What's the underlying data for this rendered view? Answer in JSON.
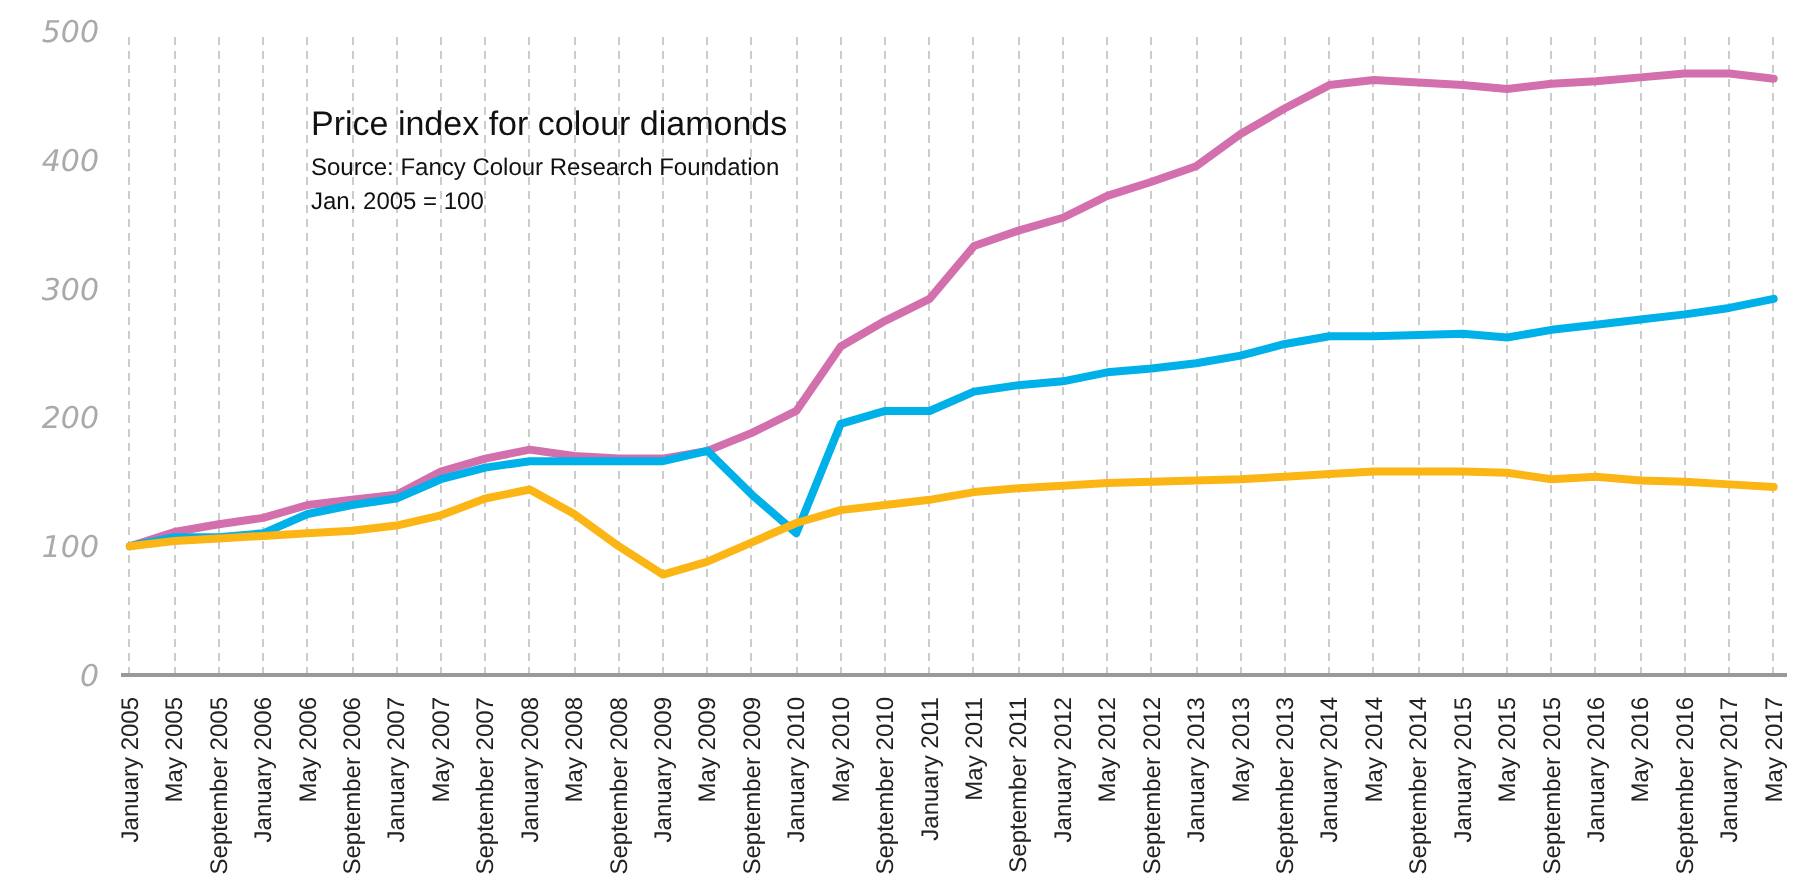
{
  "chart_data": {
    "type": "line",
    "title": "Price index for colour diamonds",
    "subtitle": "Source: Fancy Colour Research Foundation",
    "annotations": [
      "Jan. 2005 = 100"
    ],
    "categories": [
      "January 2005",
      "May 2005",
      "September 2005",
      "January 2006",
      "May 2006",
      "September 2006",
      "January 2007",
      "May 2007",
      "September 2007",
      "January 2008",
      "May 2008",
      "September 2008",
      "January 2009",
      "May 2009",
      "September 2009",
      "January 2010",
      "May 2010",
      "September 2010",
      "January 2011",
      "May 2011",
      "September 2011",
      "January 2012",
      "May 2012",
      "September 2012",
      "January 2013",
      "May 2013",
      "September 2013",
      "January 2014",
      "May 2014",
      "September 2014",
      "January 2015",
      "May 2015",
      "September 2015",
      "January 2016",
      "May 2016",
      "September 2016",
      "January 2017",
      "May 2017"
    ],
    "series": [
      {
        "color": "#d36fad",
        "values": [
          100,
          111,
          117,
          122,
          132,
          136,
          140,
          158,
          168,
          175,
          170,
          168,
          168,
          174,
          188,
          205,
          255,
          275,
          292,
          333,
          345,
          355,
          372,
          383,
          395,
          420,
          440,
          458,
          462,
          460,
          458,
          455,
          459,
          461,
          464,
          467,
          467,
          463
        ]
      },
      {
        "color": "#00b0e8",
        "values": [
          100,
          107,
          107,
          110,
          125,
          132,
          137,
          152,
          161,
          166,
          166,
          166,
          166,
          174,
          140,
          110,
          195,
          205,
          205,
          220,
          225,
          228,
          235,
          238,
          242,
          248,
          257,
          263,
          263,
          264,
          265,
          262,
          268,
          272,
          276,
          280,
          285,
          292
        ]
      },
      {
        "color": "#fbb514",
        "values": [
          100,
          104,
          106,
          108,
          110,
          112,
          116,
          124,
          137,
          144,
          125,
          100,
          78,
          88,
          103,
          118,
          128,
          132,
          136,
          142,
          145,
          147,
          149,
          150,
          151,
          152,
          154,
          156,
          158,
          158,
          158,
          157,
          152,
          154,
          151,
          150,
          148,
          146
        ]
      }
    ],
    "ylim": [
      0,
      500
    ],
    "yticks": [
      0,
      100,
      200,
      300,
      400,
      500
    ],
    "grid": "x",
    "marker": "none",
    "line_style": "solid"
  }
}
